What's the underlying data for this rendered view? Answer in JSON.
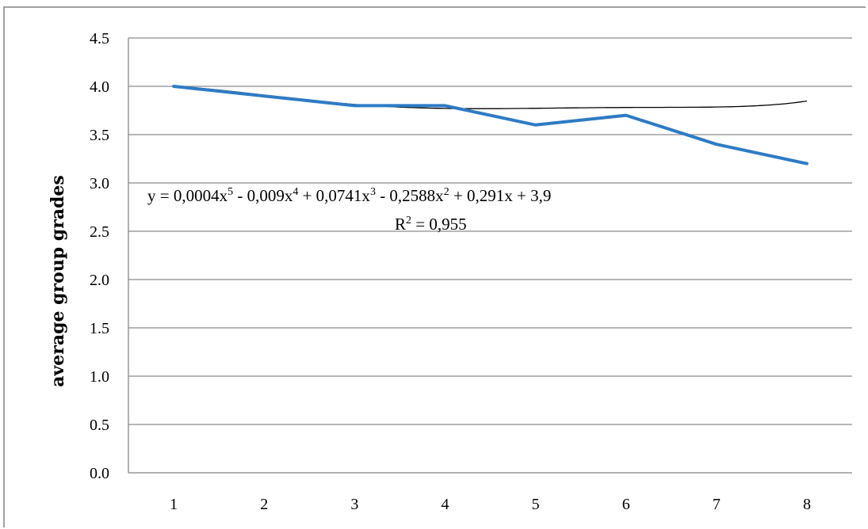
{
  "chart_data": {
    "type": "line",
    "title": "",
    "xlabel": "",
    "ylabel": "average group grades",
    "categories": [
      "1",
      "2",
      "3",
      "4",
      "5",
      "6",
      "7",
      "8"
    ],
    "x": [
      1,
      2,
      3,
      4,
      5,
      6,
      7,
      8
    ],
    "ylim": [
      0,
      4.5
    ],
    "yticks": [
      "0.0",
      "0.5",
      "1.0",
      "1.5",
      "2.0",
      "2.5",
      "3.0",
      "3.5",
      "4.0",
      "4.5"
    ],
    "grid": true,
    "legend": "none",
    "series": [
      {
        "values": [
          4.0,
          3.9,
          3.8,
          3.8,
          3.6,
          3.7,
          3.4,
          3.2
        ],
        "color": "#2e7bc4"
      }
    ],
    "trendline": {
      "type": "polynomial",
      "order": 5,
      "coefficients": [
        0.0004,
        -0.009,
        0.0741,
        -0.2588,
        0.291,
        3.9
      ],
      "color": "#000000",
      "equation_parts": {
        "p1": "y = 0,0004x",
        "s1": "5",
        "p2": " - 0,009x",
        "s2": "4",
        "p3": " + 0,0741x",
        "s3": "3",
        "p4": " - 0,2588x",
        "s4": "2",
        "p5": " + 0,291x + 3,9"
      },
      "r2_label": "R",
      "r2_sup": "2",
      "r2_value": " = 0,955"
    }
  }
}
